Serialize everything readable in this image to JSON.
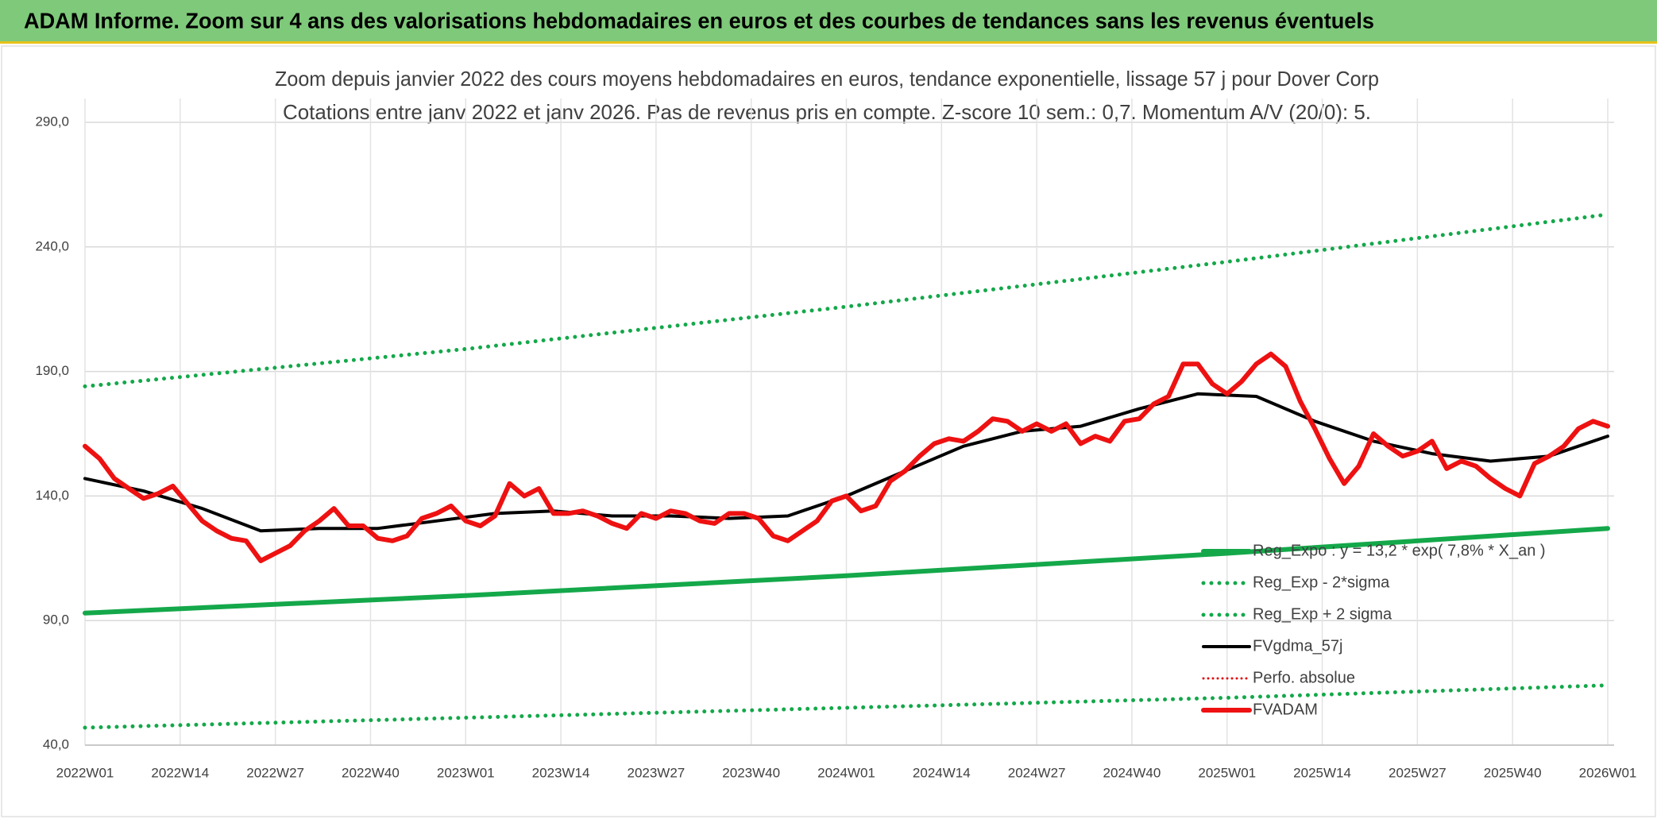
{
  "header": {
    "title": "ADAM Informe. Zoom sur 4 ans des valorisations hebdomadaires en euros et des courbes de tendances sans les revenus éventuels"
  },
  "chart_data": {
    "type": "line",
    "title": "Zoom depuis janvier 2022 des cours moyens hebdomadaires en euros, tendance exponentielle, lissage 57 j pour Dover Corp",
    "subtitle": "Cotations entre janv 2022 et janv 2026. Pas de revenus pris en compte. Z-score 10 sem.: 0,7. Momentum A/V (20/0): 5.",
    "xlim": [
      0,
      208
    ],
    "xticks": [
      {
        "value": 0,
        "label": "2022W01"
      },
      {
        "value": 13,
        "label": "2022W14"
      },
      {
        "value": 26,
        "label": "2022W27"
      },
      {
        "value": 39,
        "label": "2022W40"
      },
      {
        "value": 52,
        "label": "2023W01"
      },
      {
        "value": 65,
        "label": "2023W14"
      },
      {
        "value": 78,
        "label": "2023W27"
      },
      {
        "value": 91,
        "label": "2023W40"
      },
      {
        "value": 104,
        "label": "2024W01"
      },
      {
        "value": 117,
        "label": "2024W14"
      },
      {
        "value": 130,
        "label": "2024W27"
      },
      {
        "value": 143,
        "label": "2024W40"
      },
      {
        "value": 156,
        "label": "2025W01"
      },
      {
        "value": 169,
        "label": "2025W14"
      },
      {
        "value": 182,
        "label": "2025W27"
      },
      {
        "value": 195,
        "label": "2025W40"
      },
      {
        "value": 208,
        "label": "2026W01"
      }
    ],
    "ylim": [
      40,
      290
    ],
    "yticks": [
      {
        "value": 40,
        "label": "40,0"
      },
      {
        "value": 90,
        "label": "90,0"
      },
      {
        "value": 140,
        "label": "140,0"
      },
      {
        "value": 190,
        "label": "190,0"
      },
      {
        "value": 240,
        "label": "240,0"
      },
      {
        "value": 290,
        "label": "290,0"
      }
    ],
    "grid": true,
    "legend": "right",
    "series": [
      {
        "name": "Reg_Expo : y = 13,2 * exp( 7,8% *  X_an )",
        "color": "#14a84a",
        "style": "solid",
        "width": 6,
        "x": [
          0,
          52,
          104,
          156,
          208
        ],
        "values": [
          93,
          100,
          108,
          117,
          127
        ]
      },
      {
        "name": "Reg_Exp - 2*sigma",
        "color": "#14a84a",
        "style": "dotted",
        "width": 5,
        "x": [
          0,
          52,
          104,
          156,
          208
        ],
        "values": [
          47,
          51,
          55,
          59,
          64
        ]
      },
      {
        "name": "Reg_Exp + 2 sigma",
        "color": "#14a84a",
        "style": "dotted",
        "width": 5,
        "x": [
          0,
          52,
          104,
          156,
          208
        ],
        "values": [
          184,
          199,
          216,
          234,
          253
        ]
      },
      {
        "name": "FVgdma_57j",
        "color": "#000000",
        "style": "solid",
        "width": 4,
        "x": [
          0,
          8,
          16,
          24,
          32,
          40,
          48,
          56,
          64,
          72,
          80,
          88,
          96,
          104,
          112,
          120,
          128,
          136,
          144,
          152,
          160,
          168,
          176,
          184,
          192,
          200,
          208
        ],
        "values": [
          147,
          142,
          135,
          126,
          127,
          127,
          130,
          133,
          134,
          132,
          132,
          131,
          132,
          140,
          150,
          160,
          166,
          168,
          175,
          181,
          180,
          170,
          162,
          157,
          154,
          156,
          164
        ]
      },
      {
        "name": "Perfo. absolue",
        "color": "#e01010",
        "style": "dotted",
        "width": 3,
        "x": [],
        "values": []
      },
      {
        "name": "FVADAM",
        "color": "#ee1111",
        "style": "solid",
        "width": 6,
        "x": [
          0,
          2,
          4,
          6,
          8,
          10,
          12,
          14,
          16,
          18,
          20,
          22,
          24,
          26,
          28,
          30,
          32,
          34,
          36,
          38,
          40,
          42,
          44,
          46,
          48,
          50,
          52,
          54,
          56,
          58,
          60,
          62,
          64,
          66,
          68,
          70,
          72,
          74,
          76,
          78,
          80,
          82,
          84,
          86,
          88,
          90,
          92,
          94,
          96,
          98,
          100,
          102,
          104,
          106,
          108,
          110,
          112,
          114,
          116,
          118,
          120,
          122,
          124,
          126,
          128,
          130,
          132,
          134,
          136,
          138,
          140,
          142,
          144,
          146,
          148,
          150,
          152,
          154,
          156,
          158,
          160,
          162,
          164,
          166,
          168,
          170,
          172,
          174,
          176,
          178,
          180,
          182,
          184,
          186,
          188,
          190,
          192,
          194,
          196,
          198,
          200,
          202,
          204,
          206,
          208
        ],
        "values": [
          160,
          155,
          147,
          143,
          139,
          141,
          144,
          137,
          130,
          126,
          123,
          122,
          114,
          117,
          120,
          126,
          130,
          135,
          128,
          128,
          123,
          122,
          124,
          131,
          133,
          136,
          130,
          128,
          132,
          145,
          140,
          143,
          133,
          133,
          134,
          132,
          129,
          127,
          133,
          131,
          134,
          133,
          130,
          129,
          133,
          133,
          131,
          124,
          122,
          126,
          130,
          138,
          140,
          134,
          136,
          146,
          150,
          156,
          161,
          163,
          162,
          166,
          171,
          170,
          166,
          169,
          166,
          169,
          161,
          164,
          162,
          170,
          171,
          177,
          180,
          193,
          193,
          185,
          181,
          186,
          193,
          197,
          192,
          178,
          167,
          155,
          145,
          152,
          165,
          160,
          156,
          158,
          162,
          151,
          154,
          152,
          147,
          143,
          140,
          153,
          156,
          160,
          167,
          170,
          168
        ]
      }
    ]
  }
}
